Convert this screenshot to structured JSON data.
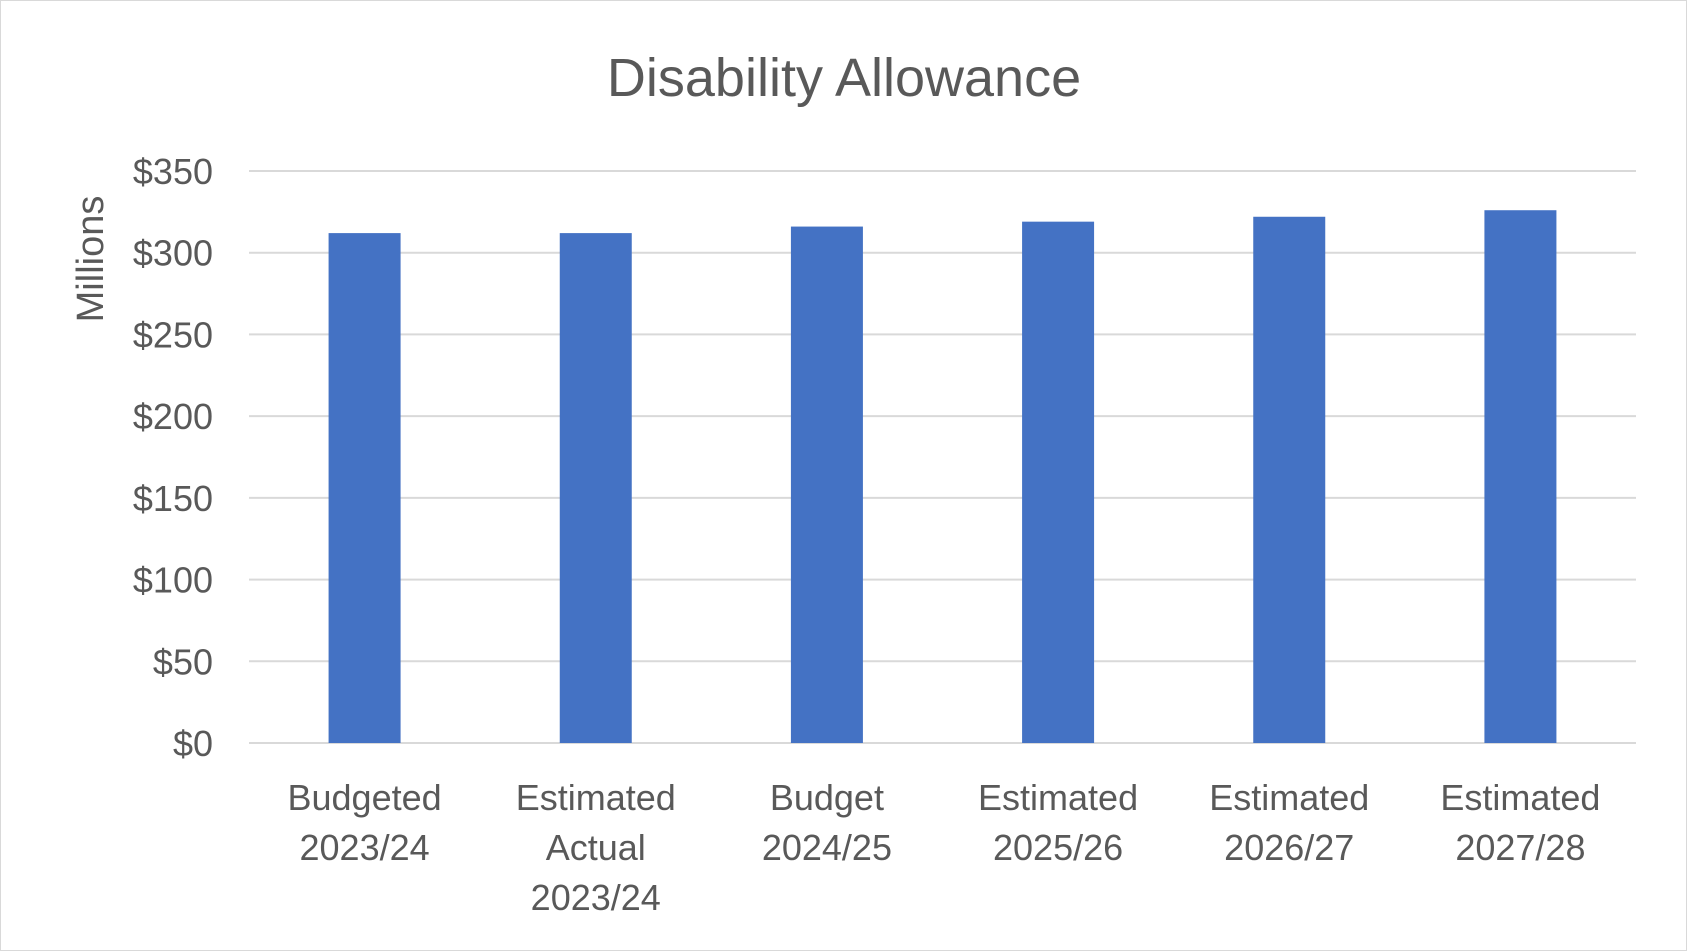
{
  "chart_data": {
    "type": "bar",
    "title": "Disability Allowance",
    "xlabel": "",
    "ylabel": "Millions",
    "categories": [
      [
        "Budgeted",
        "2023/24"
      ],
      [
        "Estimated",
        "Actual",
        "2023/24"
      ],
      [
        "Budget",
        "2024/25"
      ],
      [
        "Estimated",
        "2025/26"
      ],
      [
        "Estimated",
        "2026/27"
      ],
      [
        "Estimated",
        "2027/28"
      ]
    ],
    "values": [
      312,
      312,
      316,
      319,
      322,
      326
    ],
    "ylim": [
      0,
      350
    ],
    "yticks": [
      0,
      50,
      100,
      150,
      200,
      250,
      300,
      350
    ],
    "ytick_labels": [
      "$0",
      "$50",
      "$100",
      "$150",
      "$200",
      "$250",
      "$300",
      "$350"
    ],
    "grid": true,
    "legend": "none",
    "bar_color": "#4472c4",
    "grid_color": "#d9d9d9",
    "text_color": "#595959"
  }
}
